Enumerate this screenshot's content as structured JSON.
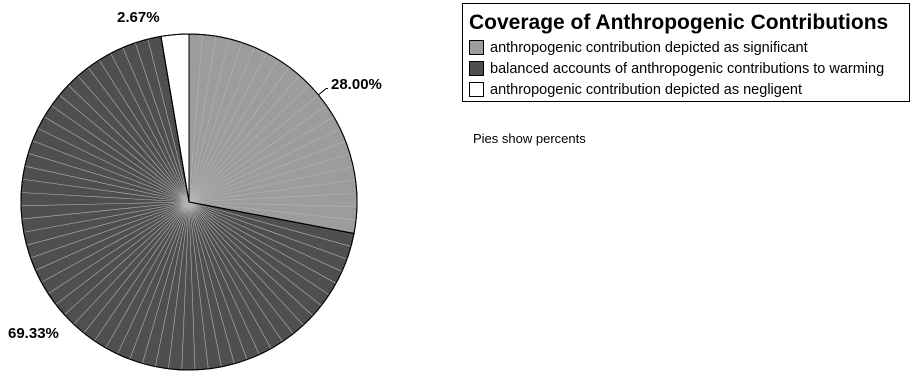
{
  "chart_data": {
    "type": "pie",
    "title": "Coverage of Anthropogenic Contributions",
    "slices": [
      {
        "name": "anthropogenic contribution depicted as significant",
        "value": 28.0,
        "label": "28.00%",
        "color": "#9c9c9c"
      },
      {
        "name": "balanced accounts of anthropogenic contributions to warming",
        "value": 69.33,
        "label": "69.33%",
        "color": "#4f4f4f"
      },
      {
        "name": "anthropogenic contribution depicted as negligent",
        "value": 2.67,
        "label": "2.67%",
        "color": "#ffffff"
      }
    ],
    "legend_position": "top-right",
    "start_angle": "12 o'clock",
    "direction": "clockwise"
  },
  "note": "Pies show percents"
}
